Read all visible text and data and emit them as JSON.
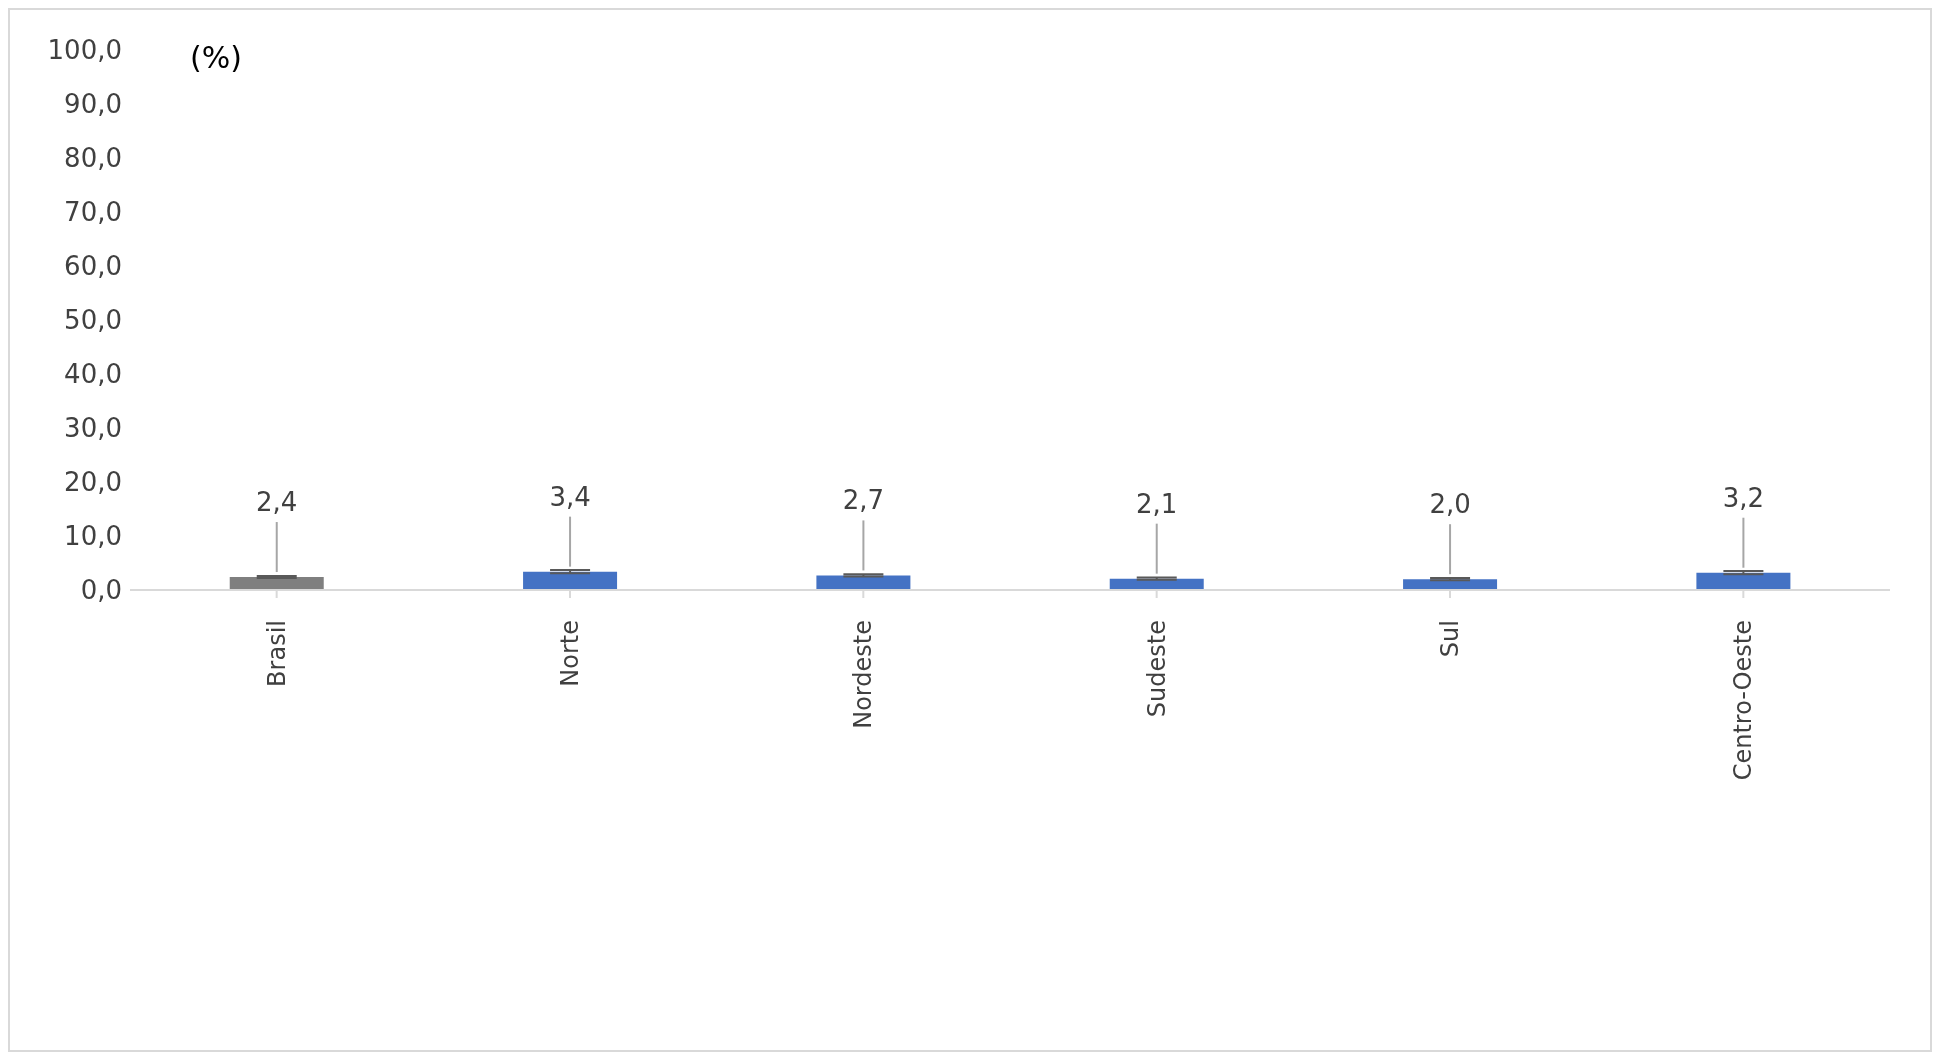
{
  "chart_data": {
    "type": "bar",
    "ylabel": "(%)",
    "categories": [
      "Brasil",
      "Norte",
      "Nordeste",
      "Sudeste",
      "Sul",
      "Centro-Oeste"
    ],
    "values": [
      2.4,
      3.4,
      2.7,
      2.1,
      2.0,
      3.2
    ],
    "colors": [
      "#7f7f7f",
      "#4472c4",
      "#4472c4",
      "#4472c4",
      "#4472c4",
      "#4472c4"
    ],
    "errors": [
      0.2,
      0.3,
      0.2,
      0.2,
      0.2,
      0.3
    ],
    "ylim": [
      0,
      100
    ],
    "yticks": [
      {
        "value": 0,
        "label": "0,0"
      },
      {
        "value": 10,
        "label": "10,0"
      },
      {
        "value": 20,
        "label": "20,0"
      },
      {
        "value": 30,
        "label": "30,0"
      },
      {
        "value": 40,
        "label": "40,0"
      },
      {
        "value": 50,
        "label": "50,0"
      },
      {
        "value": 60,
        "label": "60,0"
      },
      {
        "value": 70,
        "label": "70,0"
      },
      {
        "value": 80,
        "label": "80,0"
      },
      {
        "value": 90,
        "label": "90,0"
      },
      {
        "value": 100,
        "label": "100,0"
      }
    ],
    "value_labels": [
      "2,4",
      "3,4",
      "2,7",
      "2,1",
      "2,0",
      "3,2"
    ],
    "grid": false,
    "legend": false
  }
}
